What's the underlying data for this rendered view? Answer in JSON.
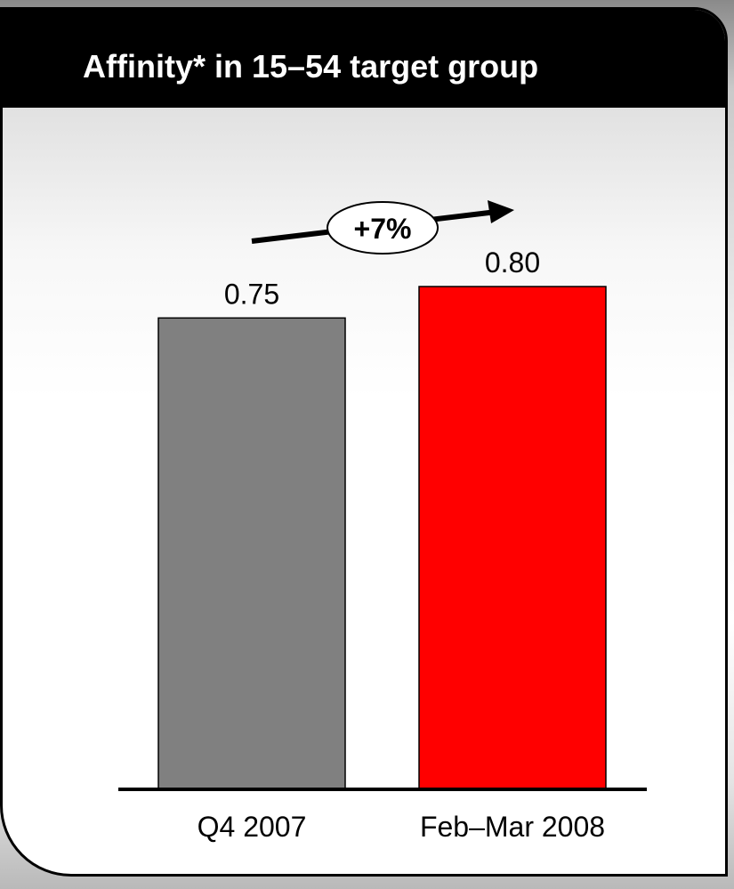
{
  "colors": {
    "header_background": "#000000",
    "header_text": "#ffffff",
    "bar_q4_2007": "#808080",
    "bar_feb_mar_2008": "#ff0000",
    "axis": "#000000"
  },
  "chart_data": {
    "type": "bar",
    "title": "Affinity* in 15–54 target group",
    "categories": [
      "Q4 2007",
      "Feb–Mar 2008"
    ],
    "values": [
      0.75,
      0.8
    ],
    "value_labels": [
      "0.75",
      "0.80"
    ],
    "bar_colors": [
      "#808080",
      "#ff0000"
    ],
    "ylim": [
      0,
      0.8
    ],
    "grid": false,
    "legend": false,
    "annotation": {
      "text": "+7%",
      "from_category": "Q4 2007",
      "to_category": "Feb–Mar 2008",
      "style": "arrow"
    }
  }
}
